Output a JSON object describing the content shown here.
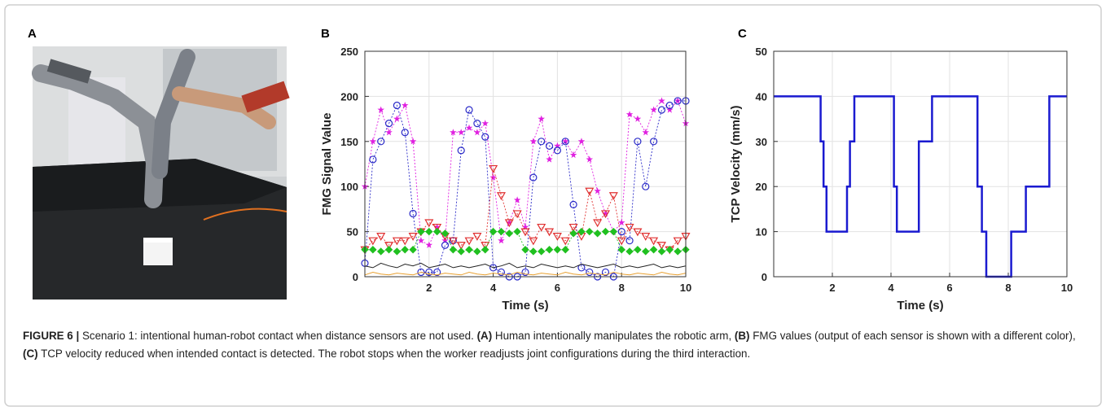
{
  "photo_panel": "A",
  "chart_data": [
    {
      "type": "line",
      "label": "B",
      "xlabel": "Time (s)",
      "ylabel": "FMG Signal Value",
      "x": [
        0,
        0.25,
        0.5,
        0.75,
        1,
        1.25,
        1.5,
        1.75,
        2,
        2.25,
        2.5,
        2.75,
        3,
        3.25,
        3.5,
        3.75,
        4,
        4.25,
        4.5,
        4.75,
        5,
        5.25,
        5.5,
        5.75,
        6,
        6.25,
        6.5,
        6.75,
        7,
        7.25,
        7.5,
        7.75,
        8,
        8.25,
        8.5,
        8.75,
        9,
        9.25,
        9.5,
        9.75,
        10
      ],
      "series": [
        {
          "color": "#e020e0",
          "marker": "star",
          "linestyle": "dotted",
          "values": [
            100,
            150,
            185,
            160,
            175,
            190,
            150,
            40,
            35,
            55,
            40,
            160,
            160,
            165,
            160,
            170,
            110,
            40,
            60,
            85,
            55,
            150,
            175,
            130,
            145,
            150,
            135,
            150,
            130,
            95,
            70,
            50,
            60,
            180,
            175,
            160,
            185,
            195,
            185,
            195,
            170
          ]
        },
        {
          "color": "#2a2ac8",
          "marker": "circle",
          "linestyle": "dotted",
          "values": [
            15,
            130,
            150,
            170,
            190,
            160,
            70,
            5,
            5,
            5,
            35,
            40,
            140,
            185,
            170,
            155,
            10,
            5,
            0,
            0,
            5,
            110,
            150,
            145,
            140,
            150,
            80,
            10,
            5,
            0,
            5,
            0,
            50,
            40,
            150,
            100,
            150,
            185,
            190,
            195,
            195
          ]
        },
        {
          "color": "#e03030",
          "marker": "triangle",
          "linestyle": "dotted",
          "values": [
            30,
            40,
            45,
            35,
            40,
            40,
            45,
            50,
            60,
            55,
            45,
            40,
            35,
            40,
            45,
            35,
            120,
            90,
            60,
            70,
            50,
            40,
            55,
            50,
            45,
            40,
            55,
            45,
            95,
            60,
            70,
            90,
            40,
            55,
            50,
            45,
            40,
            35,
            30,
            40,
            45
          ]
        },
        {
          "color": "#20c020",
          "marker": "diamond",
          "linestyle": "dotted",
          "values": [
            30,
            30,
            28,
            30,
            28,
            30,
            30,
            50,
            50,
            50,
            48,
            30,
            28,
            30,
            28,
            30,
            50,
            50,
            48,
            50,
            30,
            28,
            28,
            30,
            30,
            30,
            48,
            50,
            50,
            48,
            50,
            50,
            30,
            28,
            30,
            28,
            30,
            28,
            30,
            28,
            30
          ]
        },
        {
          "color": "#222222",
          "marker": "none",
          "linestyle": "solid",
          "values": [
            12,
            10,
            15,
            12,
            10,
            14,
            12,
            15,
            10,
            12,
            14,
            10,
            12,
            10,
            12,
            14,
            10,
            12,
            15,
            10,
            12,
            10,
            14,
            12,
            10,
            12,
            10,
            14,
            12,
            10,
            12,
            14,
            10,
            12,
            10,
            12,
            14,
            10,
            12,
            10,
            12
          ]
        },
        {
          "color": "#e8a030",
          "marker": "none",
          "linestyle": "solid",
          "values": [
            2,
            5,
            3,
            2,
            4,
            3,
            2,
            5,
            3,
            2,
            4,
            3,
            2,
            5,
            3,
            2,
            4,
            3,
            2,
            5,
            3,
            2,
            4,
            3,
            2,
            5,
            3,
            2,
            4,
            3,
            2,
            5,
            3,
            2,
            4,
            3,
            2,
            5,
            3,
            2,
            4
          ]
        }
      ],
      "xlim": [
        0,
        10
      ],
      "xticks": [
        2,
        4,
        6,
        8,
        10
      ],
      "ylim": [
        0,
        250
      ],
      "yticks": [
        0,
        50,
        100,
        150,
        200,
        250
      ],
      "grid": true
    },
    {
      "type": "line",
      "label": "C",
      "xlabel": "Time (s)",
      "ylabel": "TCP Velocity (mm/s)",
      "x": [
        0,
        1.6,
        1.6,
        1.7,
        1.7,
        1.8,
        1.8,
        2.5,
        2.5,
        2.6,
        2.6,
        2.75,
        2.75,
        4.1,
        4.1,
        4.2,
        4.2,
        4.95,
        4.95,
        5.4,
        5.4,
        6.95,
        6.95,
        7.1,
        7.1,
        7.25,
        7.25,
        8.1,
        8.1,
        8.6,
        8.6,
        9.4,
        9.4,
        10
      ],
      "series": [
        {
          "color": "#1a1ad0",
          "marker": "none",
          "linestyle": "solid",
          "values": [
            40,
            40,
            30,
            30,
            20,
            20,
            10,
            10,
            20,
            20,
            30,
            30,
            40,
            40,
            20,
            20,
            10,
            10,
            30,
            30,
            40,
            40,
            20,
            20,
            10,
            10,
            0,
            0,
            10,
            10,
            20,
            20,
            40,
            40
          ]
        }
      ],
      "xlim": [
        0,
        10
      ],
      "xticks": [
        2,
        4,
        6,
        8,
        10
      ],
      "ylim": [
        0,
        50
      ],
      "yticks": [
        0,
        10,
        20,
        30,
        40,
        50
      ],
      "grid": true
    }
  ],
  "caption": {
    "label": "FIGURE 6 |",
    "intro": "Scenario 1: intentional human-robot contact when distance sensors are not used.",
    "items": [
      {
        "tag": "(A)",
        "text": "Human intentionally manipulates the robotic arm,"
      },
      {
        "tag": "(B)",
        "text": "FMG values (output of each sensor is shown with a different color),"
      },
      {
        "tag": "(C)",
        "text": "TCP velocity reduced when intended contact is detected. The robot stops when the worker readjusts joint configurations during the third interaction."
      }
    ]
  }
}
